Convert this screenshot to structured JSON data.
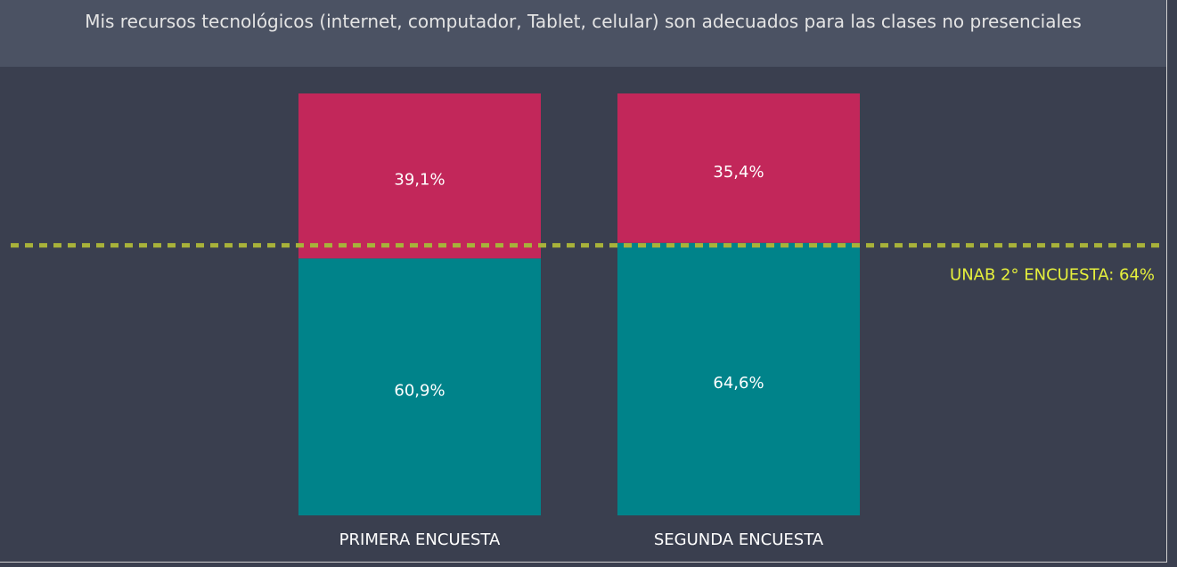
{
  "chart_data": {
    "type": "stacked_bar_100",
    "title": "Mis recursos tecnológicos (internet, computador, Tablet, celular) son adecuados para las clases no presenciales",
    "categories": [
      "PRIMERA ENCUESTA",
      "SEGUNDA ENCUESTA"
    ],
    "series": [
      {
        "color": "#00838a",
        "values": [
          60.9,
          64.6
        ],
        "value_labels": [
          "60,9%",
          "64,6%"
        ]
      },
      {
        "color": "#c2275a",
        "values": [
          39.1,
          35.4
        ],
        "value_labels": [
          "39,1%",
          "35,4%"
        ]
      }
    ],
    "ylim": [
      0,
      100
    ],
    "reference_line": {
      "value": 64,
      "label": "UNAB 2° ENCUESTA: 64%",
      "color": "#a8b23a",
      "label_color": "#e6f03c"
    }
  }
}
